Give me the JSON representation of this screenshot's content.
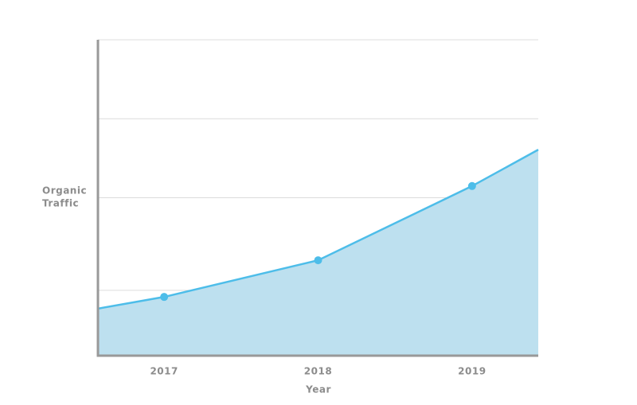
{
  "chart_data": {
    "type": "area",
    "x_label": "Year",
    "y_label": [
      "Organic",
      "Traffic"
    ],
    "x": [
      2016.57,
      2017,
      2018,
      2019,
      2019.43
    ],
    "xlim": [
      2016.57,
      2019.43
    ],
    "xticks": [
      2017,
      2018,
      2019
    ],
    "series": [
      {
        "color": "#4dbde9",
        "fill": "#bde0ef",
        "values": [
          14.9,
          18.6,
          30.2,
          53.7,
          65.2
        ]
      }
    ],
    "ylim": [
      0,
      100
    ],
    "gridlines": [
      100,
      75,
      50,
      20.7
    ],
    "grid": true
  }
}
